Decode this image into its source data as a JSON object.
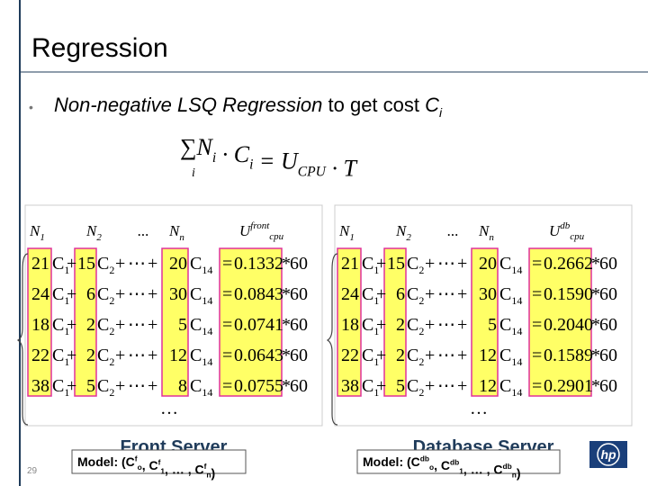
{
  "title": "Regression",
  "bullet": {
    "mark": "•",
    "emph": "Non-negative LSQ Regression",
    "text": " to get cost ",
    "var": "C",
    "sub": "i"
  },
  "formula": [
    {
      "text": "∑"
    },
    {
      "text": "N",
      "sub": "i"
    },
    {
      "text": " · "
    },
    {
      "text": "C",
      "sub": "i"
    },
    {
      "text": " = "
    },
    {
      "text": "U",
      "sub": "CPU"
    },
    {
      "text": " · T"
    }
  ],
  "formula_index": "i",
  "symbols": {
    "c": "C",
    "plus": "+",
    "dots": "⋯",
    "eq": "=",
    "times": "*",
    "c_subs": [
      "1",
      "2",
      "14"
    ],
    "more_rows": "…"
  },
  "panels": [
    {
      "headers": [
        {
          "text": "N",
          "sub": "1"
        },
        {
          "text": "N",
          "sub": "2"
        },
        {
          "text": "..."
        },
        {
          "text": "N",
          "sub": "n"
        },
        {
          "text": "U",
          "sup": "front",
          "sub": "cpu"
        }
      ],
      "rows": [
        [
          "21",
          "15",
          "20",
          "0.1332",
          "60"
        ],
        [
          "24",
          "6",
          "30",
          "0.0843",
          "60"
        ],
        [
          "18",
          "2",
          "5",
          "0.0741",
          "60"
        ],
        [
          "22",
          "2",
          "12",
          "0.0643",
          "60"
        ],
        [
          "38",
          "5",
          "8",
          "0.0755",
          "60"
        ]
      ],
      "server": "Front Server",
      "model": [
        {
          "text": "Model: (C",
          "sup": "f",
          "sub": "o"
        },
        {
          "text": ", C",
          "sup": "f",
          "sub": "1"
        },
        {
          "text": ", … , C",
          "sup": "f",
          "sub": "n"
        },
        {
          "text": ")"
        }
      ]
    },
    {
      "headers": [
        {
          "text": "N",
          "sub": "1"
        },
        {
          "text": "N",
          "sub": "2"
        },
        {
          "text": "..."
        },
        {
          "text": "N",
          "sub": "n"
        },
        {
          "text": "U",
          "sup": "db",
          "sub": "cpu"
        }
      ],
      "rows": [
        [
          "21",
          "15",
          "20",
          "0.2662",
          "60"
        ],
        [
          "24",
          "6",
          "30",
          "0.1590",
          "60"
        ],
        [
          "18",
          "2",
          "5",
          "0.2040",
          "60"
        ],
        [
          "22",
          "2",
          "12",
          "0.1589",
          "60"
        ],
        [
          "38",
          "5",
          "12",
          "0.2901",
          "60"
        ]
      ],
      "server": "Database Server",
      "model": [
        {
          "text": "Model: (C",
          "sup": "db",
          "sub": "o"
        },
        {
          "text": ", C",
          "sup": "db",
          "sub": "1"
        },
        {
          "text": ", … , C",
          "sup": "db",
          "sub": "n"
        },
        {
          "text": ")"
        }
      ]
    }
  ],
  "page_number": "29",
  "logo": "hp"
}
